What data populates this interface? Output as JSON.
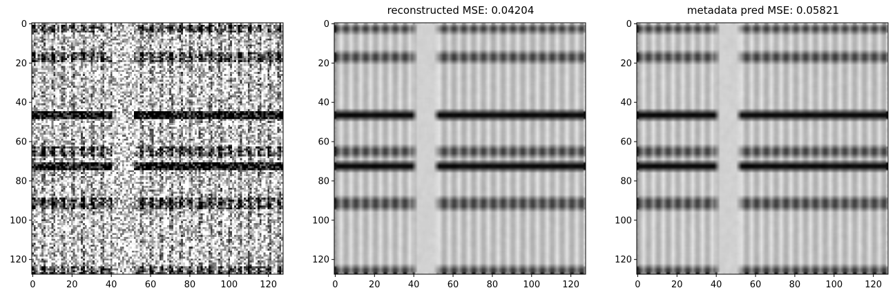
{
  "figure": {
    "background": "#ffffff"
  },
  "chart_data": [
    {
      "type": "heatmap",
      "title": "",
      "xlabel": "",
      "ylabel": "",
      "xlim": [
        -0.5,
        127.5
      ],
      "ylim": [
        127.5,
        -0.5
      ],
      "x_ticks": [
        "0",
        "20",
        "40",
        "60",
        "80",
        "100",
        "120"
      ],
      "y_ticks": [
        "0",
        "20",
        "40",
        "60",
        "80",
        "100",
        "120"
      ],
      "colormap": "gray",
      "image_size": [
        128,
        128
      ],
      "variant": "noisy",
      "structure": {
        "dark_rows_strong": [
          45,
          46,
          47,
          48,
          71,
          72,
          73,
          74
        ],
        "dark_dot_rows": [
          [
            1,
            4
          ],
          [
            15,
            19
          ],
          [
            63,
            67
          ],
          [
            89,
            94
          ],
          [
            124,
            127
          ]
        ],
        "column_period": 5,
        "light_gap_columns": [
          41,
          51
        ]
      }
    },
    {
      "type": "heatmap",
      "title": "reconstructed MSE: 0.04204",
      "xlabel": "",
      "ylabel": "",
      "xlim": [
        -0.5,
        127.5
      ],
      "ylim": [
        127.5,
        -0.5
      ],
      "x_ticks": [
        "0",
        "20",
        "40",
        "60",
        "80",
        "100",
        "120"
      ],
      "y_ticks": [
        "0",
        "20",
        "40",
        "60",
        "80",
        "100",
        "120"
      ],
      "colormap": "gray",
      "image_size": [
        128,
        128
      ],
      "variant": "smooth",
      "structure": {
        "dark_rows_strong": [
          45,
          46,
          47,
          48,
          71,
          72,
          73,
          74
        ],
        "dark_dot_rows": [
          [
            1,
            4
          ],
          [
            15,
            19
          ],
          [
            63,
            67
          ],
          [
            89,
            94
          ],
          [
            124,
            127
          ]
        ],
        "column_period": 5,
        "light_gap_columns": [
          41,
          51
        ]
      }
    },
    {
      "type": "heatmap",
      "title": "metadata pred MSE: 0.05821",
      "xlabel": "",
      "ylabel": "",
      "xlim": [
        -0.5,
        127.5
      ],
      "ylim": [
        127.5,
        -0.5
      ],
      "x_ticks": [
        "0",
        "20",
        "40",
        "60",
        "80",
        "100",
        "120"
      ],
      "y_ticks": [
        "0",
        "20",
        "40",
        "60",
        "80",
        "100",
        "120"
      ],
      "colormap": "gray",
      "image_size": [
        128,
        128
      ],
      "variant": "smooth",
      "structure": {
        "dark_rows_strong": [
          45,
          46,
          47,
          48,
          71,
          72,
          73,
          74
        ],
        "dark_dot_rows": [
          [
            1,
            4
          ],
          [
            15,
            19
          ],
          [
            63,
            67
          ],
          [
            89,
            94
          ],
          [
            124,
            127
          ]
        ],
        "column_period": 5,
        "light_gap_columns": [
          41,
          51
        ]
      }
    }
  ]
}
